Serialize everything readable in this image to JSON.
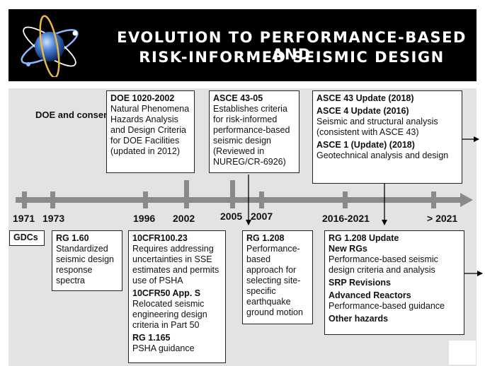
{
  "header": {
    "title_line1": "EVOLUTION TO PERFORMANCE-BASED AND",
    "title_line2": "RISK-INFORMED SEISMIC DESIGN"
  },
  "left_label": "DOE and consensus standards",
  "top_boxes": {
    "doe": {
      "title": "DOE 1020-2002",
      "text": "Natural Phenomena Hazards Analysis and Design Criteria for DOE Facilities (updated in 2012)"
    },
    "asce4305": {
      "title": "ASCE 43-05",
      "text": "Establishes criteria for risk-informed performance-based seismic design (Reviewed in NUREG/CR-6926)"
    },
    "asce_updates": {
      "title1": "ASCE 43 Update (2018)",
      "title2": "ASCE 4 Update (2016)",
      "text2": "Seismic and structural analysis (consistent with ASCE 43)",
      "title3": "ASCE 1 (Update) (2018)",
      "text3": "Geotechnical analysis and design"
    }
  },
  "timeline": {
    "years": [
      "1971",
      "1973",
      "1996",
      "2002",
      "2005",
      "2007",
      "2016-2021",
      "> 2021"
    ]
  },
  "bottom_boxes": {
    "gdcs": {
      "title": "GDCs"
    },
    "rg160": {
      "title": "RG 1.60",
      "text": "Standardized seismic design response spectra"
    },
    "cfr": {
      "title1": "10CFR100.23",
      "text1": "Requires addressing uncertainties in SSE estimates and permits use of PSHA",
      "title2": "10CFR50 App. S",
      "text2": "Relocated seismic engineering design criteria in Part 50",
      "title3": "RG 1.165",
      "text3": "PSHA guidance"
    },
    "rg1208": {
      "title": "RG 1.208",
      "text": "Performance-based approach for selecting site-specific earthquake ground motion"
    },
    "rg1208update": {
      "title1": "RG 1.208 Update",
      "title2": "New RGs",
      "text2": "Performance-based seismic design criteria and analysis",
      "title3": "SRP Revisions",
      "title4": "Advanced Reactors",
      "text4": "Performance-based guidance",
      "title5": "Other hazards"
    }
  }
}
